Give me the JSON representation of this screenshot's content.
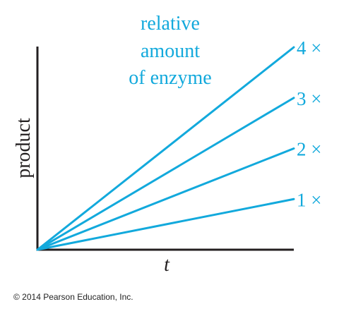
{
  "colors": {
    "line": "#12a9dc",
    "annotation": "#12a9dc",
    "axis": "#231f20",
    "text": "#231f20"
  },
  "chart_data": {
    "type": "line",
    "xlabel": "t",
    "ylabel": "product",
    "title": "",
    "annotation_lines": [
      "relative",
      "amount",
      "of enzyme"
    ],
    "x_range": [
      0,
      1
    ],
    "y_range": [
      0,
      1
    ],
    "grid": false,
    "legend": "end-of-line labels",
    "series": [
      {
        "name": "1 ×",
        "x": [
          0,
          1
        ],
        "values": [
          0,
          0.25
        ]
      },
      {
        "name": "2 ×",
        "x": [
          0,
          1
        ],
        "values": [
          0,
          0.5
        ]
      },
      {
        "name": "3 ×",
        "x": [
          0,
          1
        ],
        "values": [
          0,
          0.75
        ]
      },
      {
        "name": "4 ×",
        "x": [
          0,
          1
        ],
        "values": [
          0,
          1.0
        ]
      }
    ]
  },
  "footer": {
    "copyright": "© 2014 Pearson Education, Inc."
  }
}
